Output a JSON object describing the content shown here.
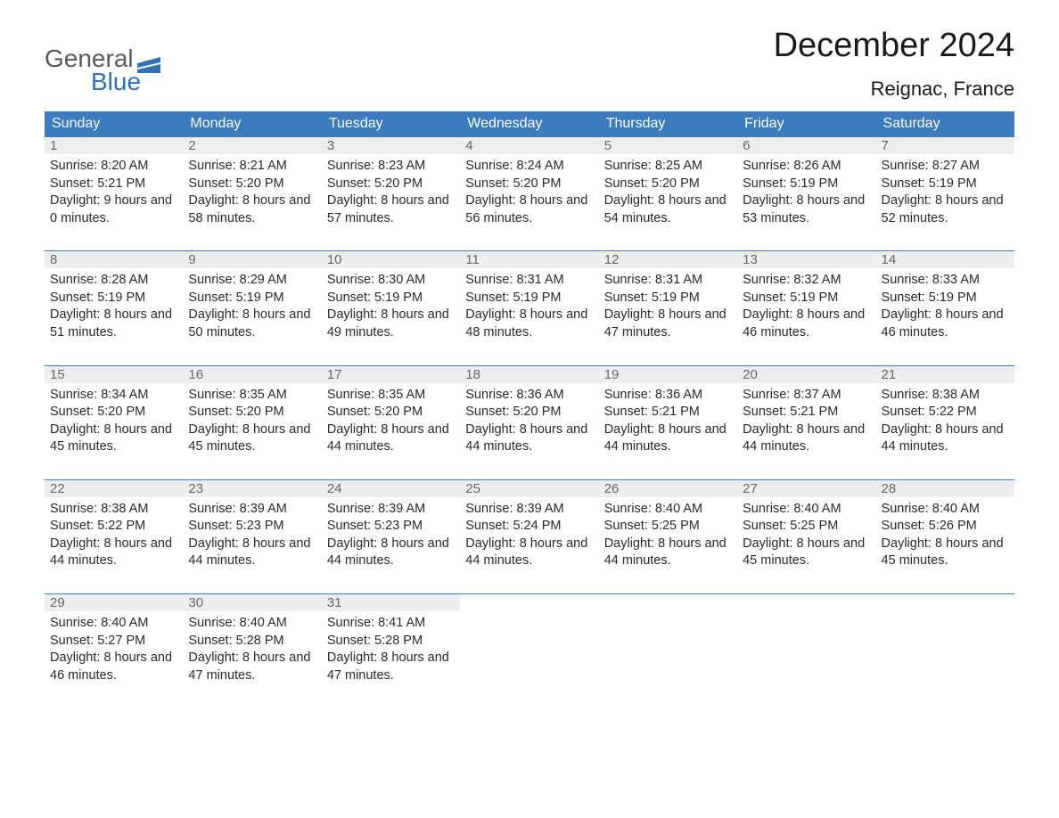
{
  "logo": {
    "text_gray": "General",
    "text_blue": "Blue",
    "gray_color": "#5a5a5a",
    "blue_color": "#2f72b8"
  },
  "header": {
    "month_title": "December 2024",
    "location": "Reignac, France"
  },
  "styling": {
    "header_row_bg": "#3b7bbf",
    "header_row_text": "#ffffff",
    "day_number_bg": "#eeeeee",
    "day_number_text": "#666666",
    "body_text_color": "#2a2a2a",
    "row_border_color": "#3b7bbf",
    "page_bg": "#ffffff",
    "title_fontsize": 38,
    "location_fontsize": 22,
    "header_fontsize": 16,
    "cell_fontsize": 14.5
  },
  "weekdays": [
    "Sunday",
    "Monday",
    "Tuesday",
    "Wednesday",
    "Thursday",
    "Friday",
    "Saturday"
  ],
  "labels": {
    "sunrise": "Sunrise:",
    "sunset": "Sunset:",
    "daylight_prefix": "Daylight:",
    "and": "and",
    "minutes_suffix": "minutes."
  },
  "days": [
    {
      "n": 1,
      "sunrise": "8:20 AM",
      "sunset": "5:21 PM",
      "dh": 9,
      "dm": 0
    },
    {
      "n": 2,
      "sunrise": "8:21 AM",
      "sunset": "5:20 PM",
      "dh": 8,
      "dm": 58
    },
    {
      "n": 3,
      "sunrise": "8:23 AM",
      "sunset": "5:20 PM",
      "dh": 8,
      "dm": 57
    },
    {
      "n": 4,
      "sunrise": "8:24 AM",
      "sunset": "5:20 PM",
      "dh": 8,
      "dm": 56
    },
    {
      "n": 5,
      "sunrise": "8:25 AM",
      "sunset": "5:20 PM",
      "dh": 8,
      "dm": 54
    },
    {
      "n": 6,
      "sunrise": "8:26 AM",
      "sunset": "5:19 PM",
      "dh": 8,
      "dm": 53
    },
    {
      "n": 7,
      "sunrise": "8:27 AM",
      "sunset": "5:19 PM",
      "dh": 8,
      "dm": 52
    },
    {
      "n": 8,
      "sunrise": "8:28 AM",
      "sunset": "5:19 PM",
      "dh": 8,
      "dm": 51
    },
    {
      "n": 9,
      "sunrise": "8:29 AM",
      "sunset": "5:19 PM",
      "dh": 8,
      "dm": 50
    },
    {
      "n": 10,
      "sunrise": "8:30 AM",
      "sunset": "5:19 PM",
      "dh": 8,
      "dm": 49
    },
    {
      "n": 11,
      "sunrise": "8:31 AM",
      "sunset": "5:19 PM",
      "dh": 8,
      "dm": 48
    },
    {
      "n": 12,
      "sunrise": "8:31 AM",
      "sunset": "5:19 PM",
      "dh": 8,
      "dm": 47
    },
    {
      "n": 13,
      "sunrise": "8:32 AM",
      "sunset": "5:19 PM",
      "dh": 8,
      "dm": 46
    },
    {
      "n": 14,
      "sunrise": "8:33 AM",
      "sunset": "5:19 PM",
      "dh": 8,
      "dm": 46
    },
    {
      "n": 15,
      "sunrise": "8:34 AM",
      "sunset": "5:20 PM",
      "dh": 8,
      "dm": 45
    },
    {
      "n": 16,
      "sunrise": "8:35 AM",
      "sunset": "5:20 PM",
      "dh": 8,
      "dm": 45
    },
    {
      "n": 17,
      "sunrise": "8:35 AM",
      "sunset": "5:20 PM",
      "dh": 8,
      "dm": 44
    },
    {
      "n": 18,
      "sunrise": "8:36 AM",
      "sunset": "5:20 PM",
      "dh": 8,
      "dm": 44
    },
    {
      "n": 19,
      "sunrise": "8:36 AM",
      "sunset": "5:21 PM",
      "dh": 8,
      "dm": 44
    },
    {
      "n": 20,
      "sunrise": "8:37 AM",
      "sunset": "5:21 PM",
      "dh": 8,
      "dm": 44
    },
    {
      "n": 21,
      "sunrise": "8:38 AM",
      "sunset": "5:22 PM",
      "dh": 8,
      "dm": 44
    },
    {
      "n": 22,
      "sunrise": "8:38 AM",
      "sunset": "5:22 PM",
      "dh": 8,
      "dm": 44
    },
    {
      "n": 23,
      "sunrise": "8:39 AM",
      "sunset": "5:23 PM",
      "dh": 8,
      "dm": 44
    },
    {
      "n": 24,
      "sunrise": "8:39 AM",
      "sunset": "5:23 PM",
      "dh": 8,
      "dm": 44
    },
    {
      "n": 25,
      "sunrise": "8:39 AM",
      "sunset": "5:24 PM",
      "dh": 8,
      "dm": 44
    },
    {
      "n": 26,
      "sunrise": "8:40 AM",
      "sunset": "5:25 PM",
      "dh": 8,
      "dm": 44
    },
    {
      "n": 27,
      "sunrise": "8:40 AM",
      "sunset": "5:25 PM",
      "dh": 8,
      "dm": 45
    },
    {
      "n": 28,
      "sunrise": "8:40 AM",
      "sunset": "5:26 PM",
      "dh": 8,
      "dm": 45
    },
    {
      "n": 29,
      "sunrise": "8:40 AM",
      "sunset": "5:27 PM",
      "dh": 8,
      "dm": 46
    },
    {
      "n": 30,
      "sunrise": "8:40 AM",
      "sunset": "5:28 PM",
      "dh": 8,
      "dm": 47
    },
    {
      "n": 31,
      "sunrise": "8:41 AM",
      "sunset": "5:28 PM",
      "dh": 8,
      "dm": 47
    }
  ],
  "start_weekday_index": 0,
  "trailing_empty": 4
}
